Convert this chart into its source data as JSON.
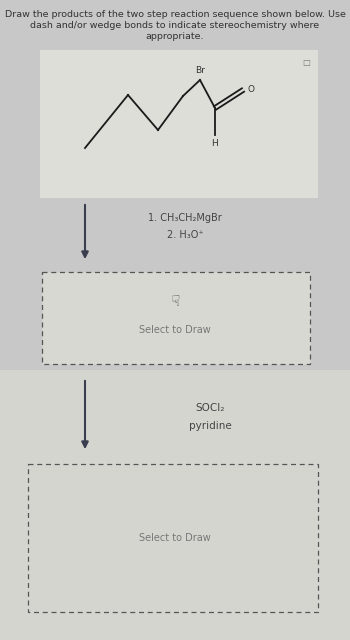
{
  "title_line1": "Draw the products of the two step reaction sequence shown below. Use",
  "title_line2": "dash and/or wedge bonds to indicate stereochemistry where",
  "title_line3": "appropriate.",
  "bg_top": "#c8c8c8",
  "bg_bottom": "#d5d5d0",
  "molecule_bg": "#deded8",
  "box1_bg": "#d8d8d2",
  "box2_bg": "#d5d5d0",
  "step1_reagent1": "1. CH₃CH₂MgBr",
  "step1_reagent2": "2. H₃O⁺",
  "step2_reagent1": "SOCl₂",
  "step2_reagent2": "pyridine",
  "select_text": "Select to Draw",
  "arrow_color": "#3a3d4d",
  "text_color": "#333333",
  "reagent_color": "#444444",
  "dashed_color": "#555555",
  "mol_line_color": "#1a1a1a",
  "label_br": "Br",
  "label_o": "O",
  "label_h": "H",
  "title_fontsize": 6.8,
  "reagent_fontsize": 7.0,
  "select_fontsize": 7.0
}
